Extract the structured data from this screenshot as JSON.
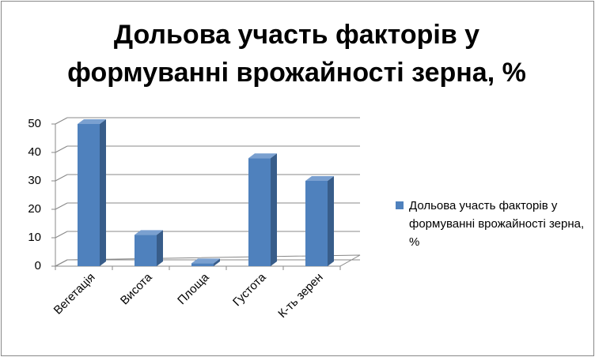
{
  "chart_data": {
    "type": "bar3d",
    "title": "Дольова участь факторів у формуванні врожайності зерна, %",
    "categories": [
      "Вегетація",
      "Висота",
      "Площа",
      "Густота",
      "К-ть зерен"
    ],
    "series": [
      {
        "name": "Дольова участь факторів у формуванні врожайності зерна, %",
        "color": "#4f81bd",
        "values": [
          50,
          11,
          1,
          38,
          30
        ]
      }
    ],
    "ylim": [
      0,
      50
    ],
    "yticks": [
      0,
      10,
      20,
      30,
      40,
      50
    ],
    "grid": true,
    "legend": "right"
  }
}
